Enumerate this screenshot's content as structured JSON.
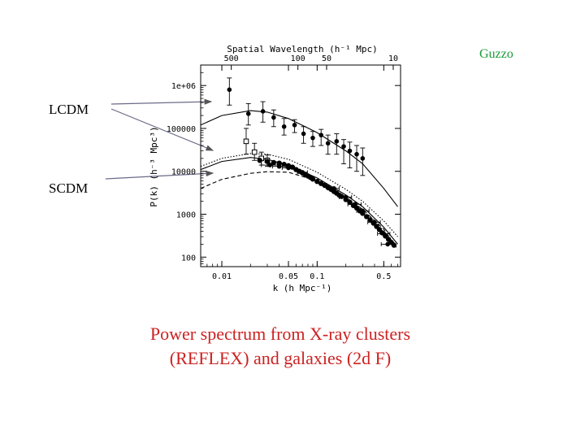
{
  "slide": {
    "author": "Guzzo",
    "label_lcdm": "LCDM",
    "label_scdm": "SCDM",
    "caption_line1": "Power spectrum from X-ray clusters",
    "caption_line2": "(REFLEX) and galaxies (2d F)"
  },
  "chart_data": {
    "type": "scatter",
    "title": "",
    "top_axis_label": "Spatial Wavelength (h⁻¹ Mpc)",
    "top_ticks": [
      {
        "label": "500",
        "wavelength": 500
      },
      {
        "label": "100",
        "wavelength": 100
      },
      {
        "label": "50",
        "wavelength": 50
      },
      {
        "label": "10",
        "wavelength": 10
      }
    ],
    "xlabel": "k (h Mpc⁻¹)",
    "ylabel": "P(k) (h⁻³ Mpc³)",
    "xscale": "log",
    "yscale": "log",
    "xlim": [
      0.006,
      0.75
    ],
    "ylim": [
      60,
      3000000
    ],
    "xticks": [
      {
        "label": "0.01",
        "value": 0.01
      },
      {
        "label": "0.05",
        "value": 0.05
      },
      {
        "label": "0.1",
        "value": 0.1
      },
      {
        "label": "0.5",
        "value": 0.5
      }
    ],
    "yticks": [
      {
        "label": "1e+06",
        "value": 1000000
      },
      {
        "label": "100000",
        "value": 100000
      },
      {
        "label": "10000",
        "value": 10000
      },
      {
        "label": "1000",
        "value": 1000
      },
      {
        "label": "100",
        "value": 100
      }
    ],
    "grid": false,
    "series": [
      {
        "marker": "filled-circle",
        "points": [
          {
            "x": 0.012,
            "y": 800000,
            "err": [
              1500000,
              350000
            ]
          },
          {
            "x": 0.019,
            "y": 220000,
            "err": [
              380000,
              120000
            ]
          },
          {
            "x": 0.027,
            "y": 250000,
            "err": [
              420000,
              140000
            ]
          },
          {
            "x": 0.035,
            "y": 180000,
            "err": [
              270000,
              110000
            ]
          },
          {
            "x": 0.045,
            "y": 110000,
            "err": [
              170000,
              70000
            ]
          },
          {
            "x": 0.058,
            "y": 120000,
            "err": [
              160000,
              80000
            ]
          },
          {
            "x": 0.072,
            "y": 75000,
            "err": [
              110000,
              45000
            ]
          },
          {
            "x": 0.09,
            "y": 60000,
            "err": [
              85000,
              38000
            ]
          },
          {
            "x": 0.11,
            "y": 70000,
            "err": [
              95000,
              40000
            ]
          },
          {
            "x": 0.13,
            "y": 45000,
            "err": [
              70000,
              25000
            ]
          },
          {
            "x": 0.16,
            "y": 50000,
            "err": [
              75000,
              25000
            ]
          },
          {
            "x": 0.19,
            "y": 38000,
            "err": [
              55000,
              15000
            ]
          },
          {
            "x": 0.22,
            "y": 30000,
            "err": [
              48000,
              12000
            ]
          },
          {
            "x": 0.26,
            "y": 25000,
            "err": [
              40000,
              10000
            ]
          },
          {
            "x": 0.3,
            "y": 20000,
            "err": [
              35000,
              8000
            ]
          }
        ]
      },
      {
        "marker": "open-square",
        "points": [
          {
            "x": 0.018,
            "y": 50000,
            "err": [
              100000,
              25000
            ]
          },
          {
            "x": 0.022,
            "y": 28000,
            "err": [
              45000,
              18000
            ]
          },
          {
            "x": 0.026,
            "y": 20000,
            "err": [
              28000,
              14000
            ]
          },
          {
            "x": 0.03,
            "y": 18000,
            "err": [
              24000,
              13000
            ]
          }
        ]
      },
      {
        "marker": "filled-circle-small",
        "points": [
          {
            "x": 0.025,
            "y": 18000
          },
          {
            "x": 0.03,
            "y": 17000
          },
          {
            "x": 0.035,
            "y": 16000
          },
          {
            "x": 0.04,
            "y": 15500
          },
          {
            "x": 0.045,
            "y": 14500
          },
          {
            "x": 0.05,
            "y": 13500
          },
          {
            "x": 0.055,
            "y": 12500
          },
          {
            "x": 0.06,
            "y": 11000
          },
          {
            "x": 0.065,
            "y": 10000
          },
          {
            "x": 0.07,
            "y": 9200
          },
          {
            "x": 0.075,
            "y": 8500
          },
          {
            "x": 0.08,
            "y": 7800
          },
          {
            "x": 0.085,
            "y": 7200
          },
          {
            "x": 0.09,
            "y": 6600
          },
          {
            "x": 0.1,
            "y": 5800
          },
          {
            "x": 0.11,
            "y": 5200
          },
          {
            "x": 0.12,
            "y": 4700
          },
          {
            "x": 0.13,
            "y": 4200
          },
          {
            "x": 0.14,
            "y": 3800
          },
          {
            "x": 0.15,
            "y": 3400
          },
          {
            "x": 0.16,
            "y": 3100
          },
          {
            "x": 0.17,
            "y": 2800
          },
          {
            "x": 0.18,
            "y": 2600
          },
          {
            "x": 0.2,
            "y": 2200
          },
          {
            "x": 0.22,
            "y": 1900
          },
          {
            "x": 0.24,
            "y": 1600
          },
          {
            "x": 0.26,
            "y": 1400
          },
          {
            "x": 0.28,
            "y": 1200
          },
          {
            "x": 0.3,
            "y": 1050
          },
          {
            "x": 0.33,
            "y": 880
          },
          {
            "x": 0.36,
            "y": 740
          },
          {
            "x": 0.39,
            "y": 620
          },
          {
            "x": 0.42,
            "y": 520
          },
          {
            "x": 0.45,
            "y": 440
          },
          {
            "x": 0.48,
            "y": 370
          },
          {
            "x": 0.52,
            "y": 310
          },
          {
            "x": 0.56,
            "y": 260
          },
          {
            "x": 0.6,
            "y": 220
          },
          {
            "x": 0.64,
            "y": 190
          }
        ]
      },
      {
        "marker": "filled-circle-hbar",
        "points": [
          {
            "x": 0.032,
            "y": 14000,
            "xerr": [
              0.026,
              0.04
            ]
          },
          {
            "x": 0.04,
            "y": 13000,
            "xerr": [
              0.034,
              0.047
            ]
          },
          {
            "x": 0.05,
            "y": 12000,
            "xerr": [
              0.043,
              0.058
            ]
          },
          {
            "x": 0.07,
            "y": 9500,
            "xerr": [
              0.062,
              0.079
            ]
          },
          {
            "x": 0.15,
            "y": 4000,
            "xerr": [
              0.13,
              0.17
            ]
          },
          {
            "x": 0.2,
            "y": 2500,
            "xerr": [
              0.17,
              0.23
            ]
          },
          {
            "x": 0.25,
            "y": 1700,
            "xerr": [
              0.21,
              0.29
            ]
          },
          {
            "x": 0.3,
            "y": 1200,
            "xerr": [
              0.26,
              0.35
            ]
          },
          {
            "x": 0.4,
            "y": 650,
            "xerr": [
              0.34,
              0.46
            ]
          },
          {
            "x": 0.5,
            "y": 350,
            "xerr": [
              0.43,
              0.58
            ]
          },
          {
            "x": 0.55,
            "y": 200,
            "xerr": [
              0.47,
              0.64
            ]
          }
        ]
      }
    ],
    "curves": [
      {
        "style": "solid",
        "points": [
          [
            0.006,
            120000
          ],
          [
            0.01,
            200000
          ],
          [
            0.02,
            260000
          ],
          [
            0.03,
            240000
          ],
          [
            0.05,
            170000
          ],
          [
            0.1,
            80000
          ],
          [
            0.2,
            30000
          ],
          [
            0.3,
            15000
          ],
          [
            0.5,
            4000
          ],
          [
            0.7,
            1500
          ]
        ]
      },
      {
        "style": "dotted",
        "points": [
          [
            0.006,
            13000
          ],
          [
            0.01,
            20000
          ],
          [
            0.02,
            26000
          ],
          [
            0.03,
            25000
          ],
          [
            0.05,
            19000
          ],
          [
            0.1,
            9500
          ],
          [
            0.2,
            3800
          ],
          [
            0.3,
            2000
          ],
          [
            0.5,
            700
          ],
          [
            0.7,
            300
          ]
        ]
      },
      {
        "style": "solid",
        "points": [
          [
            0.006,
            11000
          ],
          [
            0.01,
            17000
          ],
          [
            0.02,
            21000
          ],
          [
            0.03,
            19000
          ],
          [
            0.05,
            14000
          ],
          [
            0.1,
            7000
          ],
          [
            0.2,
            2800
          ],
          [
            0.3,
            1500
          ],
          [
            0.5,
            500
          ],
          [
            0.7,
            200
          ]
        ]
      },
      {
        "style": "dashed",
        "points": [
          [
            0.006,
            4000
          ],
          [
            0.01,
            6500
          ],
          [
            0.02,
            9000
          ],
          [
            0.03,
            9800
          ],
          [
            0.05,
            9500
          ],
          [
            0.1,
            6000
          ],
          [
            0.2,
            2500
          ],
          [
            0.3,
            1300
          ],
          [
            0.5,
            450
          ],
          [
            0.7,
            150
          ]
        ]
      }
    ]
  }
}
